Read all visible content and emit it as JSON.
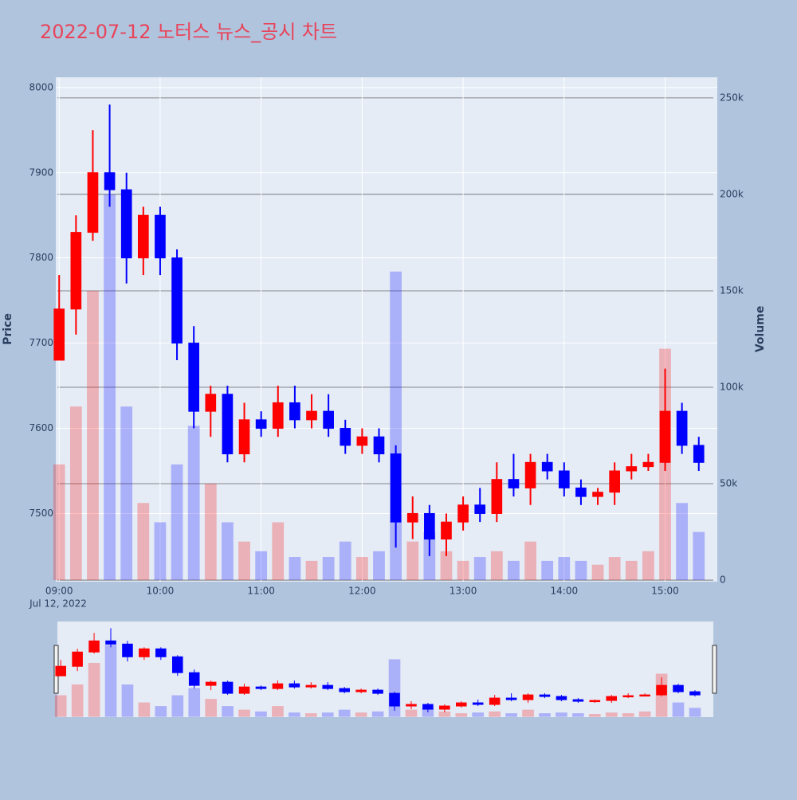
{
  "chart_data": {
    "type": "candlestick",
    "title": "2022-07-12 노터스 뉴스_공시 차트",
    "y_label": "Price",
    "y2_label": "Volume",
    "x_date_label": "Jul 12, 2022",
    "increasing_color": "#ff0000",
    "decreasing_color": "#0000ff",
    "x": [
      "2022-07-12 09:00",
      "2022-07-12 09:10",
      "2022-07-12 09:20",
      "2022-07-12 09:30",
      "2022-07-12 09:40",
      "2022-07-12 09:50",
      "2022-07-12 10:00",
      "2022-07-12 10:10",
      "2022-07-12 10:20",
      "2022-07-12 10:30",
      "2022-07-12 10:40",
      "2022-07-12 10:50",
      "2022-07-12 11:00",
      "2022-07-12 11:10",
      "2022-07-12 11:20",
      "2022-07-12 11:30",
      "2022-07-12 11:40",
      "2022-07-12 11:50",
      "2022-07-12 12:00",
      "2022-07-12 12:10",
      "2022-07-12 12:20",
      "2022-07-12 12:30",
      "2022-07-12 12:40",
      "2022-07-12 12:50",
      "2022-07-12 13:00",
      "2022-07-12 13:10",
      "2022-07-12 13:20",
      "2022-07-12 13:30",
      "2022-07-12 13:40",
      "2022-07-12 13:50",
      "2022-07-12 14:00",
      "2022-07-12 14:10",
      "2022-07-12 14:20",
      "2022-07-12 14:30",
      "2022-07-12 14:40",
      "2022-07-12 14:50",
      "2022-07-12 15:00",
      "2022-07-12 15:10",
      "2022-07-12 15:20"
    ],
    "open": [
      7680,
      7740,
      7830,
      7900,
      7880,
      7800,
      7850,
      7800,
      7700,
      7620,
      7640,
      7570,
      7610,
      7600,
      7630,
      7610,
      7620,
      7600,
      7580,
      7590,
      7570,
      7490,
      7500,
      7470,
      7490,
      7510,
      7500,
      7540,
      7530,
      7560,
      7550,
      7530,
      7520,
      7525,
      7550,
      7555,
      7560,
      7620,
      7580
    ],
    "high": [
      7780,
      7850,
      7950,
      7980,
      7900,
      7860,
      7860,
      7810,
      7720,
      7650,
      7650,
      7630,
      7620,
      7650,
      7650,
      7640,
      7640,
      7610,
      7600,
      7600,
      7580,
      7520,
      7510,
      7500,
      7520,
      7530,
      7560,
      7570,
      7570,
      7570,
      7560,
      7540,
      7530,
      7560,
      7570,
      7570,
      7670,
      7630,
      7590
    ],
    "low": [
      7680,
      7710,
      7820,
      7860,
      7770,
      7780,
      7780,
      7680,
      7600,
      7590,
      7560,
      7560,
      7590,
      7590,
      7600,
      7600,
      7590,
      7570,
      7570,
      7560,
      7460,
      7470,
      7450,
      7450,
      7480,
      7490,
      7490,
      7520,
      7510,
      7540,
      7520,
      7510,
      7510,
      7510,
      7540,
      7550,
      7550,
      7570,
      7550
    ],
    "close": [
      7740,
      7830,
      7900,
      7880,
      7800,
      7850,
      7800,
      7700,
      7620,
      7640,
      7570,
      7610,
      7600,
      7630,
      7610,
      7620,
      7600,
      7580,
      7590,
      7570,
      7490,
      7500,
      7470,
      7490,
      7510,
      7500,
      7540,
      7530,
      7560,
      7550,
      7530,
      7520,
      7525,
      7550,
      7555,
      7560,
      7620,
      7580,
      7560
    ],
    "volume": [
      60000,
      90000,
      150000,
      200000,
      90000,
      40000,
      30000,
      60000,
      80000,
      50000,
      30000,
      20000,
      15000,
      30000,
      12000,
      10000,
      12000,
      20000,
      12000,
      15000,
      160000,
      20000,
      25000,
      15000,
      10000,
      12000,
      15000,
      10000,
      20000,
      10000,
      12000,
      10000,
      8000,
      12000,
      10000,
      15000,
      120000,
      40000,
      25000
    ],
    "xlim": [
      "2022-07-12 08:58",
      "2022-07-12 15:31"
    ],
    "xticks": [
      {
        "value": "2022-07-12 09:00",
        "label": "09:00"
      },
      {
        "value": "2022-07-12 10:00",
        "label": "10:00"
      },
      {
        "value": "2022-07-12 11:00",
        "label": "11:00"
      },
      {
        "value": "2022-07-12 12:00",
        "label": "12:00"
      },
      {
        "value": "2022-07-12 13:00",
        "label": "13:00"
      },
      {
        "value": "2022-07-12 14:00",
        "label": "14:00"
      },
      {
        "value": "2022-07-12 15:00",
        "label": "15:00"
      }
    ],
    "ylim": [
      7420,
      8012
    ],
    "yticks": [
      7500,
      7600,
      7700,
      7800,
      7900,
      8000
    ],
    "y2lim": [
      -800,
      260700
    ],
    "y2ticks": [
      0,
      {
        "value": 50000,
        "label": "50k"
      },
      {
        "value": 100000,
        "label": "100k"
      },
      {
        "value": 150000,
        "label": "150k"
      },
      {
        "value": 200000,
        "label": "200k"
      },
      {
        "value": 250000,
        "label": "250k"
      }
    ],
    "grid": true,
    "rangeslider": true
  }
}
